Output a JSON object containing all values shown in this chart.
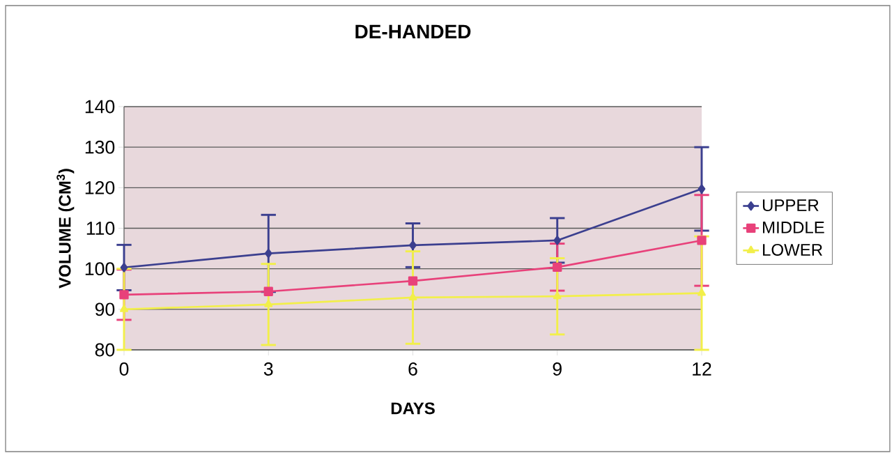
{
  "chart_data": {
    "type": "line",
    "title": "DE-HANDED",
    "xlabel": "DAYS",
    "ylabel": "VOLUME (CM$^{3}$)",
    "x": [
      0,
      3,
      6,
      9,
      12
    ],
    "series": [
      {
        "name": "UPPER",
        "color": "#3b3f8f",
        "marker": "diamond",
        "values": [
          100.3,
          103.8,
          105.8,
          107,
          119.7
        ],
        "errors": [
          5.6,
          9.5,
          5.4,
          5.5,
          10.3
        ]
      },
      {
        "name": "MIDDLE",
        "color": "#e8417a",
        "marker": "square",
        "values": [
          93.6,
          94.4,
          97,
          100.4,
          107
        ],
        "errors": [
          6.2,
          null,
          null,
          5.8,
          11.2
        ]
      },
      {
        "name": "LOWER",
        "color": "#f2ef4a",
        "marker": "triangle",
        "values": [
          90,
          91.2,
          92.9,
          93.2,
          94
        ],
        "errors": [
          10,
          10,
          11.4,
          9.4,
          14
        ]
      }
    ],
    "xlim": [
      0,
      12
    ],
    "xticks": [
      0,
      3,
      6,
      9,
      12
    ],
    "ylim": [
      80,
      140
    ],
    "yticks": [
      80,
      90,
      100,
      110,
      120,
      130,
      140
    ],
    "grid": "y",
    "legend": "right",
    "line_style": "solid"
  }
}
